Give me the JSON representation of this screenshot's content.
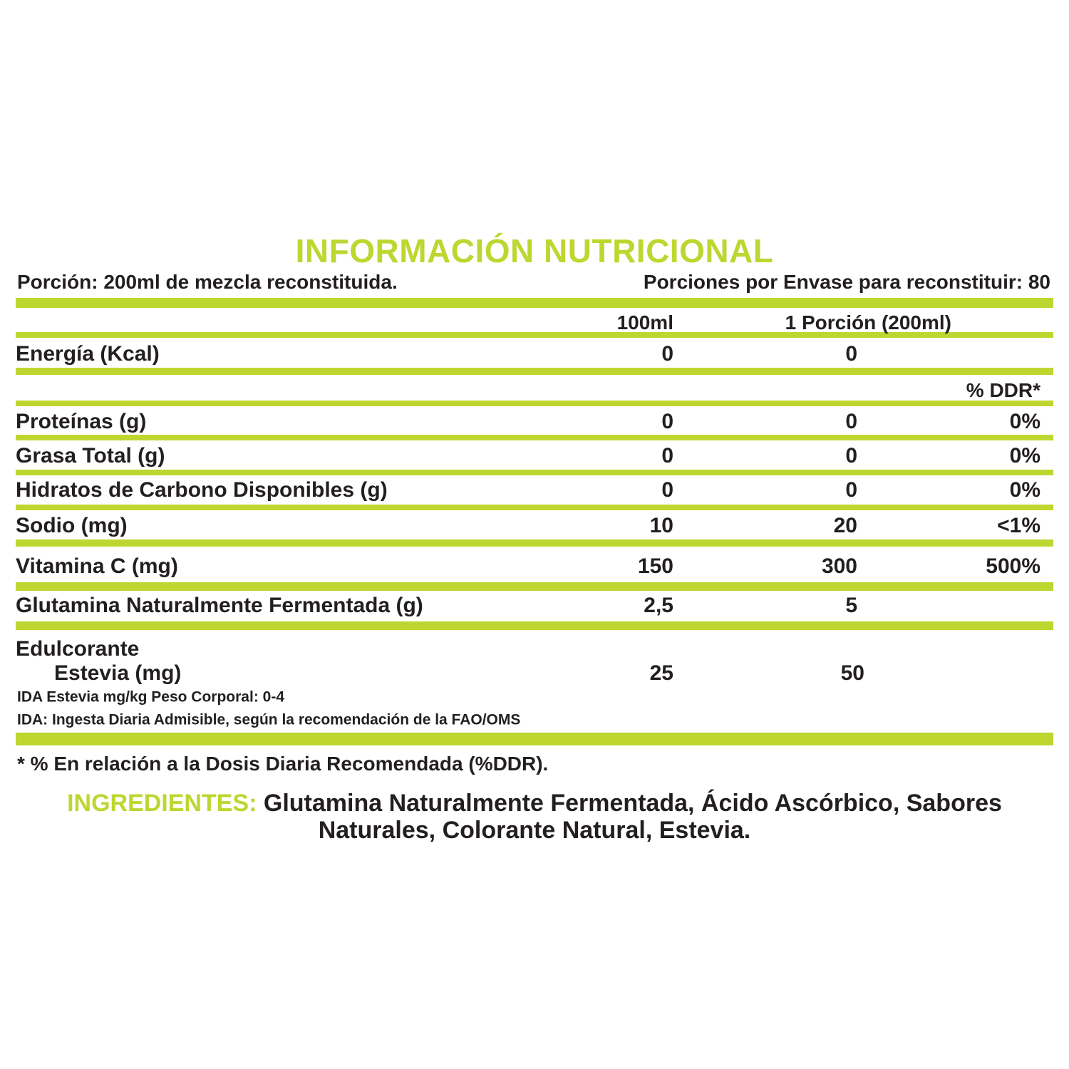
{
  "title": "INFORMACIÓN NUTRICIONAL",
  "serving": {
    "portion": "Porción: 200ml de mezcla reconstituida.",
    "per_package": "Porciones por Envase para reconstituir: 80"
  },
  "table": {
    "headers": [
      "100ml",
      "1 Porción (200ml)",
      "% DDR*"
    ],
    "rows": [
      [
        "Energía (Kcal)",
        "0",
        "0"
      ],
      [
        "Proteínas (g)",
        "0",
        "0",
        "0%"
      ],
      [
        "Grasa Total (g)",
        "0",
        "0",
        "0%"
      ],
      [
        "Hidratos de Carbono Disponibles (g)",
        "0",
        "0",
        "0%"
      ],
      [
        "Sodio (mg)",
        "10",
        "20",
        "<1%"
      ],
      [
        "Vitamina C (mg)",
        "150",
        "300",
        "500%"
      ],
      [
        "Glutamina Naturalmente Fermentada (g)",
        "2,5",
        "5"
      ]
    ],
    "sweetener": {
      "group": "Edulcorante",
      "label": "Estevia (mg)",
      "values": [
        "25",
        "50"
      ]
    }
  },
  "notes": [
    "IDA Estevia mg/kg Peso Corporal: 0-4",
    "IDA: Ingesta Diaria Admisible, según la recomendación de la FAO/OMS"
  ],
  "footnote": "* % En relación a la Dosis Diaria Recomendada (%DDR).",
  "ingredients": {
    "label": "INGREDIENTES:",
    "text": "Glutamina Naturalmente Fermentada, Ácido Ascórbico, Sabores Naturales, Colorante Natural, Estevia."
  }
}
